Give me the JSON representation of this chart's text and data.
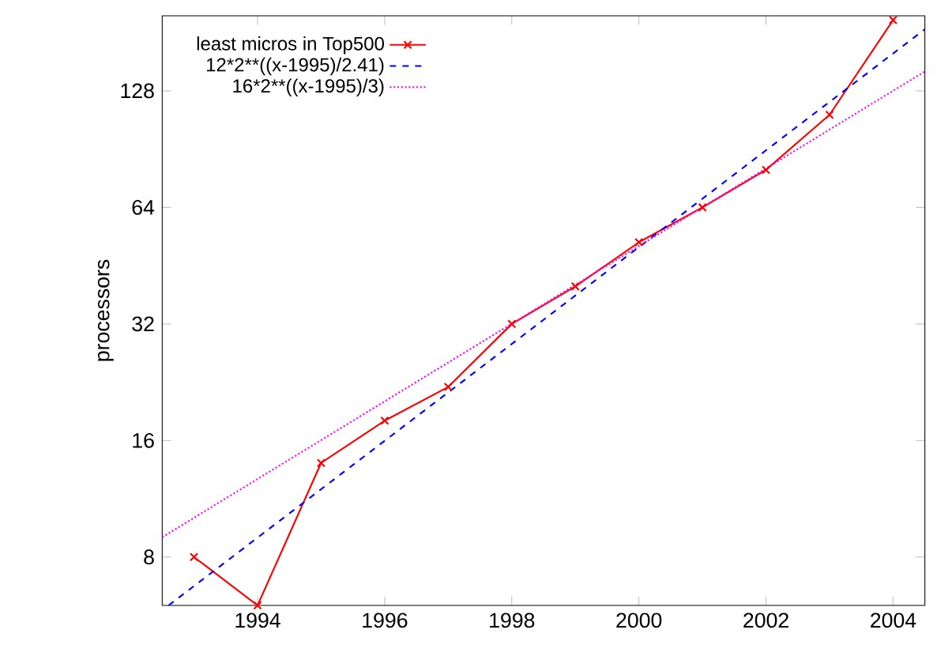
{
  "chart_data": {
    "type": "line",
    "ylabel": "processors",
    "log": "y",
    "xlim": [
      1992.5,
      2004.5
    ],
    "ylim": [
      6,
      200
    ],
    "xticks": [
      1994,
      1996,
      1998,
      2000,
      2002,
      2004
    ],
    "yticks": [
      8,
      16,
      32,
      64,
      128
    ],
    "grid": false,
    "legend": "top left",
    "series": [
      {
        "name": "least micros in Top500",
        "color": "#ff0000",
        "marker": "cross",
        "line_style": "solid",
        "x": [
          1993,
          1994,
          1995,
          1996,
          1997,
          1998,
          1999,
          2000,
          2001,
          2002,
          2003,
          2004
        ],
        "values": [
          8,
          6,
          14,
          18,
          22,
          32,
          40,
          52,
          64,
          80,
          111,
          195
        ]
      },
      {
        "name": "12*2**((x-1995)/2.41)",
        "color": "#0000ff",
        "marker": "none",
        "line_style": "dashed",
        "x": [
          1992.6,
          2004.5
        ],
        "values": [
          6.0,
          184.6
        ]
      },
      {
        "name": "16*2**((x-1995)/3)",
        "color": "#ff00ff",
        "marker": "none",
        "line_style": "dotted",
        "x": [
          1992.5,
          2004.5
        ],
        "values": [
          9.0,
          143.7
        ]
      }
    ]
  }
}
